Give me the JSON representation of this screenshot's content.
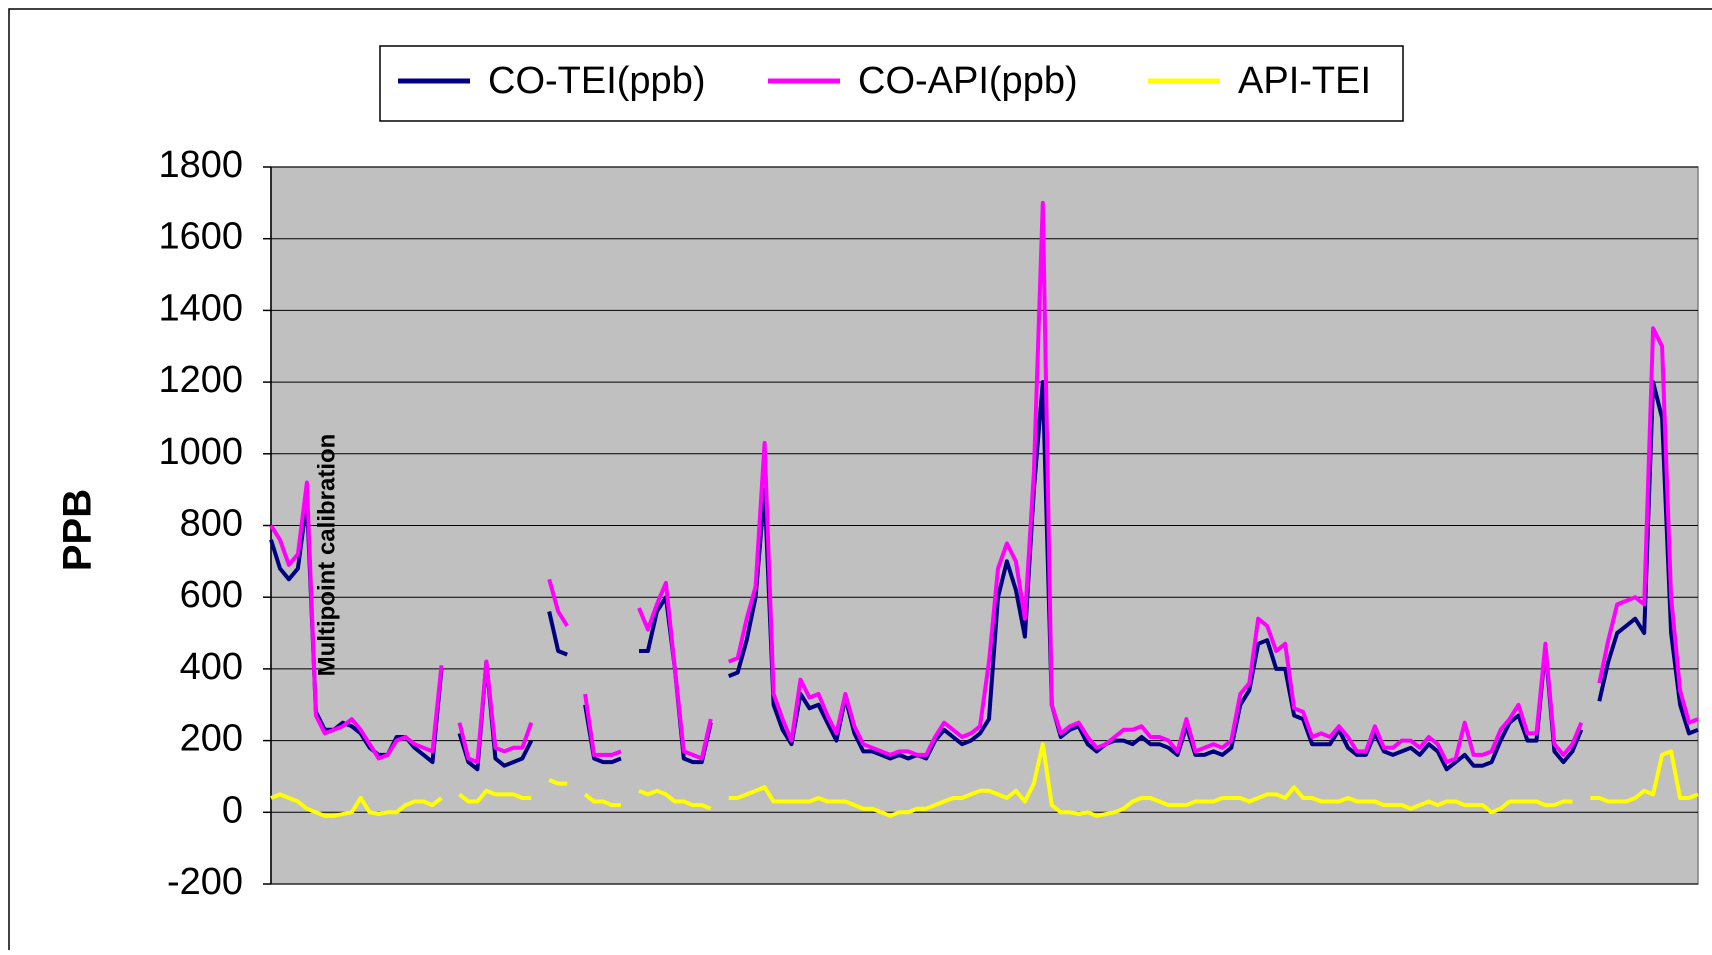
{
  "chart_data": {
    "type": "line",
    "y_label": "PPB",
    "annotation": "Multipoint calibration",
    "ylim": [
      -200,
      1800
    ],
    "yticks": [
      -200,
      0,
      200,
      400,
      600,
      800,
      1000,
      1200,
      1400,
      1600,
      1800
    ],
    "grid": true,
    "legend": "top",
    "series": [
      {
        "name": "CO-TEI(ppb)",
        "color": "#000080",
        "values": [
          760,
          680,
          650,
          680,
          870,
          280,
          230,
          230,
          250,
          240,
          220,
          180,
          160,
          160,
          210,
          210,
          180,
          160,
          140,
          400,
          null,
          220,
          140,
          120,
          420,
          150,
          130,
          140,
          150,
          200,
          null,
          560,
          450,
          440,
          null,
          300,
          150,
          140,
          140,
          150,
          null,
          450,
          450,
          560,
          600,
          400,
          150,
          140,
          140,
          250,
          null,
          380,
          390,
          480,
          600,
          900,
          300,
          230,
          190,
          330,
          290,
          300,
          250,
          200,
          320,
          220,
          170,
          170,
          160,
          150,
          160,
          150,
          160,
          150,
          200,
          230,
          210,
          190,
          200,
          220,
          260,
          600,
          700,
          620,
          490,
          900,
          1200,
          300,
          210,
          230,
          240,
          190,
          170,
          190,
          200,
          200,
          190,
          210,
          190,
          190,
          180,
          160,
          240,
          160,
          160,
          170,
          160,
          180,
          300,
          340,
          470,
          480,
          400,
          400,
          270,
          260,
          190,
          190,
          190,
          230,
          180,
          160,
          160,
          220,
          170,
          160,
          170,
          180,
          160,
          190,
          170,
          120,
          140,
          160,
          130,
          130,
          140,
          200,
          250,
          270,
          200,
          200,
          460,
          170,
          140,
          170,
          230,
          null,
          310,
          420,
          500,
          520,
          540,
          500,
          1200,
          1100,
          500,
          300,
          220,
          230
        ]
      },
      {
        "name": "CO-API(ppb)",
        "color": "#ff00ff",
        "values": [
          800,
          760,
          690,
          720,
          920,
          270,
          220,
          230,
          240,
          260,
          230,
          190,
          150,
          160,
          200,
          210,
          190,
          180,
          170,
          410,
          null,
          250,
          150,
          140,
          420,
          180,
          170,
          180,
          180,
          250,
          null,
          650,
          560,
          520,
          null,
          330,
          160,
          160,
          160,
          170,
          null,
          570,
          510,
          580,
          640,
          400,
          170,
          160,
          150,
          260,
          null,
          420,
          430,
          540,
          630,
          1030,
          330,
          260,
          200,
          370,
          320,
          330,
          270,
          220,
          330,
          240,
          190,
          180,
          170,
          160,
          170,
          170,
          160,
          160,
          210,
          250,
          230,
          210,
          220,
          240,
          420,
          680,
          750,
          700,
          540,
          950,
          1700,
          300,
          220,
          240,
          250,
          210,
          180,
          190,
          210,
          230,
          230,
          240,
          210,
          210,
          200,
          170,
          260,
          170,
          180,
          190,
          180,
          200,
          330,
          360,
          540,
          520,
          450,
          470,
          290,
          280,
          210,
          220,
          210,
          240,
          210,
          170,
          170,
          240,
          180,
          180,
          200,
          200,
          180,
          210,
          190,
          140,
          150,
          250,
          160,
          160,
          170,
          230,
          260,
          300,
          220,
          220,
          470,
          190,
          160,
          190,
          250,
          null,
          360,
          480,
          580,
          590,
          600,
          580,
          1350,
          1300,
          600,
          340,
          250,
          260
        ]
      },
      {
        "name": "API-TEI",
        "color": "#ffff00",
        "values": [
          40,
          50,
          40,
          30,
          10,
          0,
          -10,
          -10,
          -5,
          0,
          40,
          0,
          -5,
          0,
          0,
          20,
          30,
          30,
          20,
          40,
          null,
          50,
          30,
          30,
          60,
          50,
          50,
          50,
          40,
          40,
          null,
          90,
          80,
          80,
          null,
          50,
          30,
          30,
          20,
          20,
          null,
          60,
          50,
          60,
          50,
          30,
          30,
          20,
          20,
          10,
          null,
          40,
          40,
          50,
          60,
          70,
          30,
          30,
          30,
          30,
          30,
          40,
          30,
          30,
          30,
          20,
          10,
          10,
          0,
          -10,
          0,
          0,
          10,
          10,
          20,
          30,
          40,
          40,
          50,
          60,
          60,
          50,
          40,
          60,
          30,
          80,
          190,
          20,
          0,
          0,
          -5,
          0,
          -10,
          -5,
          0,
          10,
          30,
          40,
          40,
          30,
          20,
          20,
          20,
          30,
          30,
          30,
          40,
          40,
          40,
          30,
          40,
          50,
          50,
          40,
          70,
          40,
          40,
          30,
          30,
          30,
          40,
          30,
          30,
          30,
          20,
          20,
          20,
          10,
          20,
          30,
          20,
          30,
          30,
          20,
          20,
          20,
          0,
          10,
          30,
          30,
          30,
          30,
          20,
          20,
          30,
          30,
          null,
          40,
          40,
          30,
          30,
          30,
          40,
          60,
          50,
          160,
          170,
          40,
          40,
          50
        ]
      }
    ]
  }
}
